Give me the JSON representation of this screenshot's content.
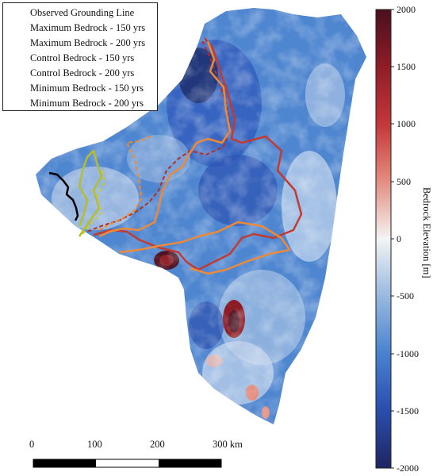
{
  "legend": {
    "items": [
      {
        "label": "Observed Grounding Line",
        "color": "#000000",
        "dashed": false
      },
      {
        "label": "Maximum Bedrock - 150 yrs",
        "color": "#c9c832",
        "dashed": true
      },
      {
        "label": "Maximum Bedrock - 200 yrs",
        "color": "#b5be2a",
        "dashed": false
      },
      {
        "label": "Control Bedrock - 150 yrs",
        "color": "#f08a2a",
        "dashed": true
      },
      {
        "label": "Control Bedrock - 200 yrs",
        "color": "#ec8a3a",
        "dashed": false
      },
      {
        "label": "Minimum Bedrock - 150 yrs",
        "color": "#b0302a",
        "dashed": true
      },
      {
        "label": "Minimum Bedrock - 200 yrs",
        "color": "#c23a30",
        "dashed": false
      }
    ]
  },
  "colorbar": {
    "title": "Bedrock Elevation [m]",
    "ticks": [
      "2000",
      "1500",
      "1000",
      "500",
      "0",
      "-500",
      "-1000",
      "-1500",
      "-2000"
    ],
    "colors": [
      "#4a0f1e",
      "#8c1c26",
      "#c4373a",
      "#e38a7c",
      "#f4f4f4",
      "#9bbbe0",
      "#4a82cf",
      "#2b4fb0",
      "#1e2560"
    ]
  },
  "scalebar": {
    "labels": [
      "0",
      "100",
      "200",
      "300 km"
    ]
  }
}
